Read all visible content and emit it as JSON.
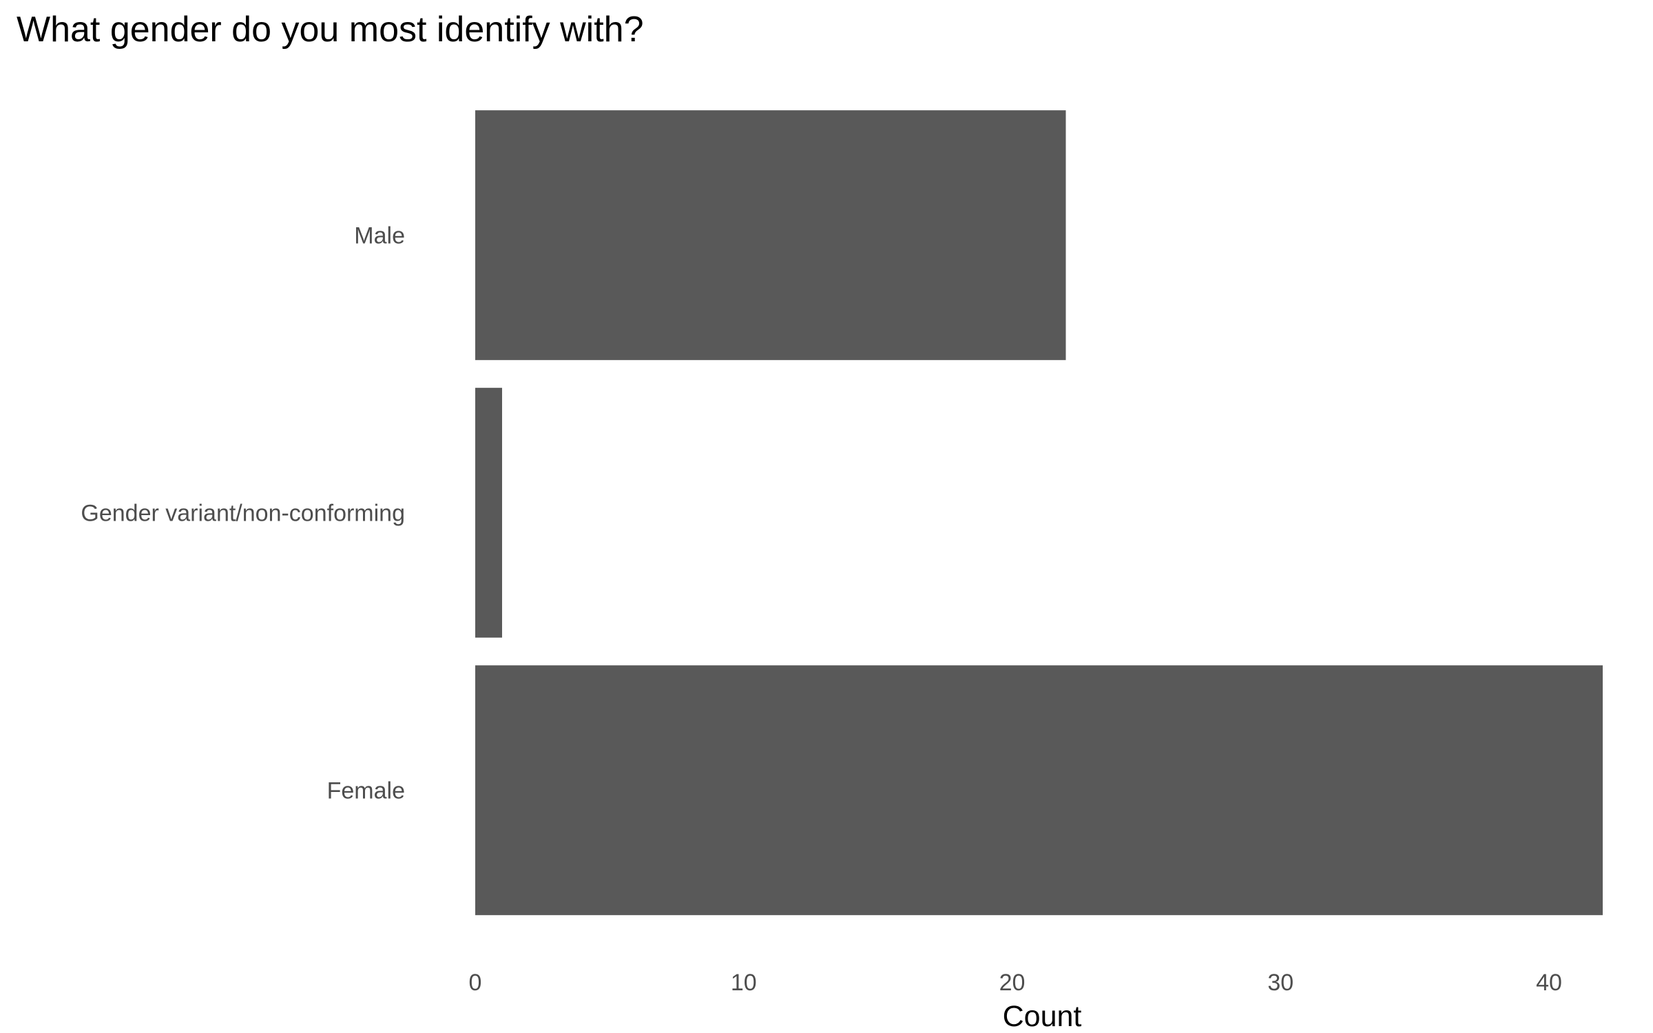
{
  "chart_data": {
    "type": "bar",
    "orientation": "horizontal",
    "title": "What gender do you most identify with?",
    "xlabel": "Count",
    "ylabel": "",
    "categories": [
      "Male",
      "Gender variant/non-conforming",
      "Female"
    ],
    "values": [
      22,
      1,
      42
    ],
    "xlim": [
      0,
      42
    ],
    "x_ticks": [
      0,
      10,
      20,
      30,
      40
    ],
    "grid": false,
    "legend": "none",
    "bar_color": "#595959",
    "background_color": "#ffffff"
  }
}
